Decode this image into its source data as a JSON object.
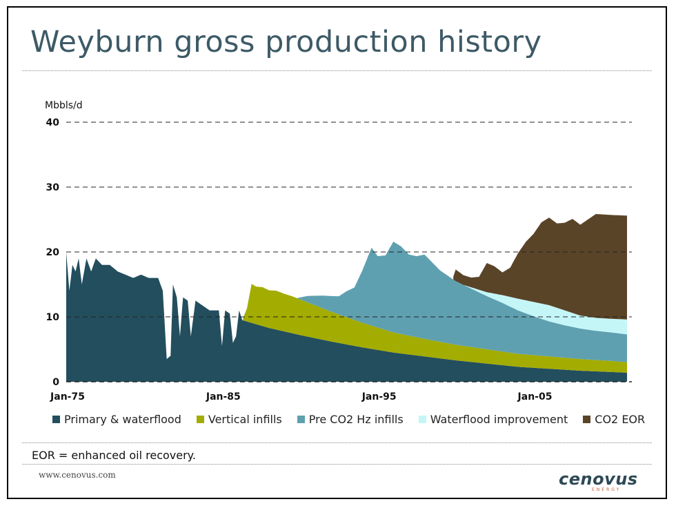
{
  "title": "Weyburn gross production history",
  "footnote": "EOR = enhanced oil recovery.",
  "website": "www.cenovus.com",
  "logo": {
    "main": "cenovus",
    "sub": "ENERGY"
  },
  "colors": {
    "primary": "#234e5e",
    "vertical": "#a3ac00",
    "pre_co2": "#5fa0b0",
    "waterflood": "#c4f6f8",
    "co2": "#5a4428"
  },
  "chart_data": {
    "type": "area",
    "stacked": true,
    "ylabel": "Mbbls/d",
    "xlabel": "",
    "ylim": [
      0,
      40
    ],
    "yticks": [
      0,
      10,
      20,
      30,
      40
    ],
    "xlim": [
      1975.0,
      2011.0
    ],
    "xticks": [
      {
        "value": 1975.0,
        "label": "Jan-75"
      },
      {
        "value": 1985.0,
        "label": "Jan-85"
      },
      {
        "value": 1995.0,
        "label": "Jan-95"
      },
      {
        "value": 2005.0,
        "label": "Jan-05"
      }
    ],
    "grid": "horizontal-dashed",
    "legend_position": "bottom",
    "series": [
      {
        "name": "Primary & waterflood",
        "color": "#234e5e",
        "points": [
          [
            1975.0,
            20
          ],
          [
            1975.2,
            14
          ],
          [
            1975.4,
            18
          ],
          [
            1975.6,
            17
          ],
          [
            1975.8,
            19
          ],
          [
            1976.0,
            15
          ],
          [
            1976.3,
            19
          ],
          [
            1976.6,
            17
          ],
          [
            1976.9,
            19
          ],
          [
            1977.3,
            18
          ],
          [
            1977.8,
            18
          ],
          [
            1978.3,
            17
          ],
          [
            1978.8,
            16.5
          ],
          [
            1979.3,
            16
          ],
          [
            1979.8,
            16.5
          ],
          [
            1980.3,
            16
          ],
          [
            1980.9,
            16
          ],
          [
            1981.2,
            14
          ],
          [
            1981.45,
            3.5
          ],
          [
            1981.7,
            4
          ],
          [
            1981.85,
            15
          ],
          [
            1982.1,
            13
          ],
          [
            1982.3,
            7
          ],
          [
            1982.5,
            13
          ],
          [
            1982.8,
            12.5
          ],
          [
            1983.0,
            7
          ],
          [
            1983.3,
            12.5
          ],
          [
            1983.6,
            12
          ],
          [
            1983.9,
            11.5
          ],
          [
            1984.2,
            11
          ],
          [
            1984.5,
            11
          ],
          [
            1984.8,
            11
          ],
          [
            1985.0,
            5.5
          ],
          [
            1985.2,
            11
          ],
          [
            1985.5,
            10.5
          ],
          [
            1985.7,
            6
          ],
          [
            1985.9,
            7
          ],
          [
            1986.1,
            11
          ],
          [
            1986.3,
            9.5
          ],
          [
            1987.0,
            9
          ],
          [
            1988.0,
            8.3
          ],
          [
            1990.0,
            7.2
          ],
          [
            1992.0,
            6.2
          ],
          [
            1994.0,
            5.3
          ],
          [
            1996.0,
            4.5
          ],
          [
            1998.0,
            3.9
          ],
          [
            2000.0,
            3.3
          ],
          [
            2002.0,
            2.8
          ],
          [
            2004.0,
            2.3
          ],
          [
            2006.0,
            2.0
          ],
          [
            2008.0,
            1.7
          ],
          [
            2010.0,
            1.5
          ],
          [
            2011.0,
            1.4
          ]
        ]
      },
      {
        "name": "Vertical infills",
        "color": "#a3ac00",
        "points": [
          [
            1986.3,
            0
          ],
          [
            1986.6,
            2
          ],
          [
            1986.9,
            6
          ],
          [
            1987.2,
            5.8
          ],
          [
            1987.6,
            6
          ],
          [
            1988.0,
            5.8
          ],
          [
            1988.5,
            6
          ],
          [
            1989.0,
            5.8
          ],
          [
            1989.5,
            5.7
          ],
          [
            1990.0,
            5.5
          ],
          [
            1992.0,
            4.6
          ],
          [
            1994.0,
            3.8
          ],
          [
            1996.0,
            3.1
          ],
          [
            1998.0,
            2.7
          ],
          [
            2000.0,
            2.4
          ],
          [
            2002.0,
            2.2
          ],
          [
            2004.0,
            2.0
          ],
          [
            2006.0,
            1.9
          ],
          [
            2008.0,
            1.8
          ],
          [
            2010.0,
            1.7
          ],
          [
            2011.0,
            1.6
          ]
        ]
      },
      {
        "name": "Pre CO2 Hz infills",
        "color": "#5fa0b0",
        "points": [
          [
            1989.8,
            0
          ],
          [
            1990.5,
            1
          ],
          [
            1991.5,
            2
          ],
          [
            1992.5,
            2.8
          ],
          [
            1993.0,
            4
          ],
          [
            1993.5,
            5
          ],
          [
            1994.0,
            8
          ],
          [
            1994.3,
            10
          ],
          [
            1994.6,
            12
          ],
          [
            1995.0,
            11
          ],
          [
            1995.5,
            11.5
          ],
          [
            1996.0,
            14
          ],
          [
            1996.5,
            13.5
          ],
          [
            1997.0,
            12.5
          ],
          [
            1997.5,
            12.5
          ],
          [
            1998.0,
            13
          ],
          [
            1998.5,
            12
          ],
          [
            1999.0,
            11
          ],
          [
            2000.0,
            9.8
          ],
          [
            2001.0,
            9
          ],
          [
            2002.0,
            8.2
          ],
          [
            2003.0,
            7.5
          ],
          [
            2004.0,
            6.7
          ],
          [
            2005.0,
            6
          ],
          [
            2006.0,
            5.4
          ],
          [
            2007.0,
            5
          ],
          [
            2008.0,
            4.7
          ],
          [
            2009.0,
            4.5
          ],
          [
            2010.0,
            4.4
          ],
          [
            2011.0,
            4.3
          ]
        ]
      },
      {
        "name": "Waterflood improvement",
        "color": "#c4f6f8",
        "points": [
          [
            2000.5,
            0
          ],
          [
            2001.0,
            0.2
          ],
          [
            2002.0,
            0.6
          ],
          [
            2003.0,
            1.2
          ],
          [
            2004.0,
            1.8
          ],
          [
            2005.0,
            2.2
          ],
          [
            2006.0,
            2.5
          ],
          [
            2007.0,
            2.3
          ],
          [
            2008.0,
            2.0
          ],
          [
            2009.0,
            2.0
          ],
          [
            2010.0,
            2.1
          ],
          [
            2011.0,
            2.3
          ]
        ]
      },
      {
        "name": "CO2 EOR",
        "color": "#5a4428",
        "points": [
          [
            1999.8,
            0
          ],
          [
            2000.0,
            1.8
          ],
          [
            2000.5,
            1.5
          ],
          [
            2001.0,
            1.5
          ],
          [
            2001.5,
            2
          ],
          [
            2002.0,
            4.5
          ],
          [
            2002.5,
            4.2
          ],
          [
            2003.0,
            3.5
          ],
          [
            2003.5,
            4.5
          ],
          [
            2004.0,
            7
          ],
          [
            2004.5,
            9
          ],
          [
            2005.0,
            10.5
          ],
          [
            2005.5,
            12.5
          ],
          [
            2006.0,
            13.5
          ],
          [
            2006.5,
            13
          ],
          [
            2007.0,
            13.5
          ],
          [
            2007.5,
            14.5
          ],
          [
            2008.0,
            14
          ],
          [
            2008.5,
            15
          ],
          [
            2009.0,
            16
          ],
          [
            2009.5,
            16
          ],
          [
            2010.0,
            16
          ],
          [
            2010.5,
            16
          ],
          [
            2011.0,
            16
          ],
          [
            2011.0,
            0
          ]
        ]
      }
    ]
  }
}
